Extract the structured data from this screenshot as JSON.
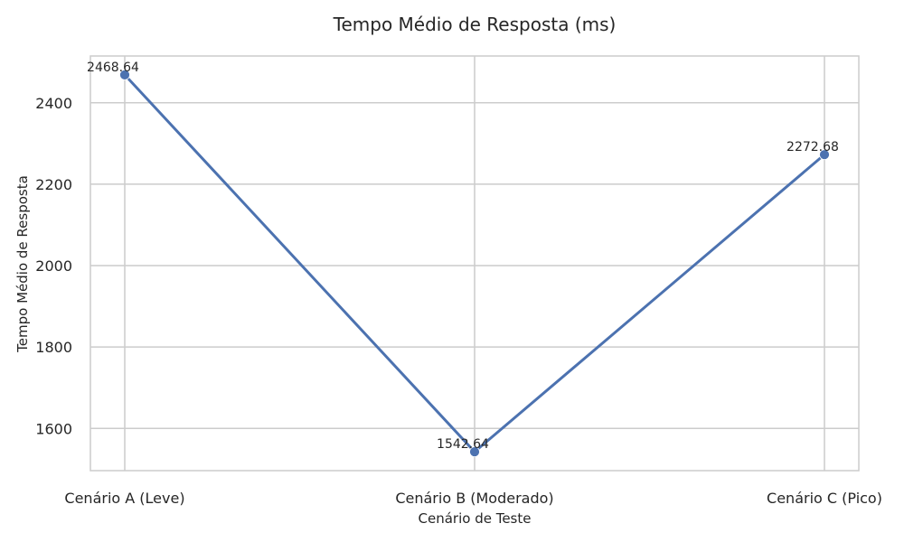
{
  "chart_data": {
    "type": "line",
    "title": "Tempo Médio de Resposta (ms)",
    "xlabel": "Cenário de Teste",
    "ylabel": "Tempo Médio de Resposta",
    "categories": [
      "Cenário A (Leve)",
      "Cenário B (Moderado)",
      "Cenário C (Pico)"
    ],
    "series": [
      {
        "values": [
          2468.64,
          1542.64,
          2272.68
        ]
      }
    ],
    "data_labels": [
      "2468.64",
      "1542.64",
      "2272.68"
    ],
    "yticks": [
      1600,
      1800,
      2000,
      2200,
      2400
    ],
    "ylim": [
      1496.34,
      2514.94
    ],
    "grid": true,
    "legend": "none",
    "line_color": "#4c72b0",
    "grid_color": "#cccccc",
    "axes_edge_color": "#cccccc"
  }
}
